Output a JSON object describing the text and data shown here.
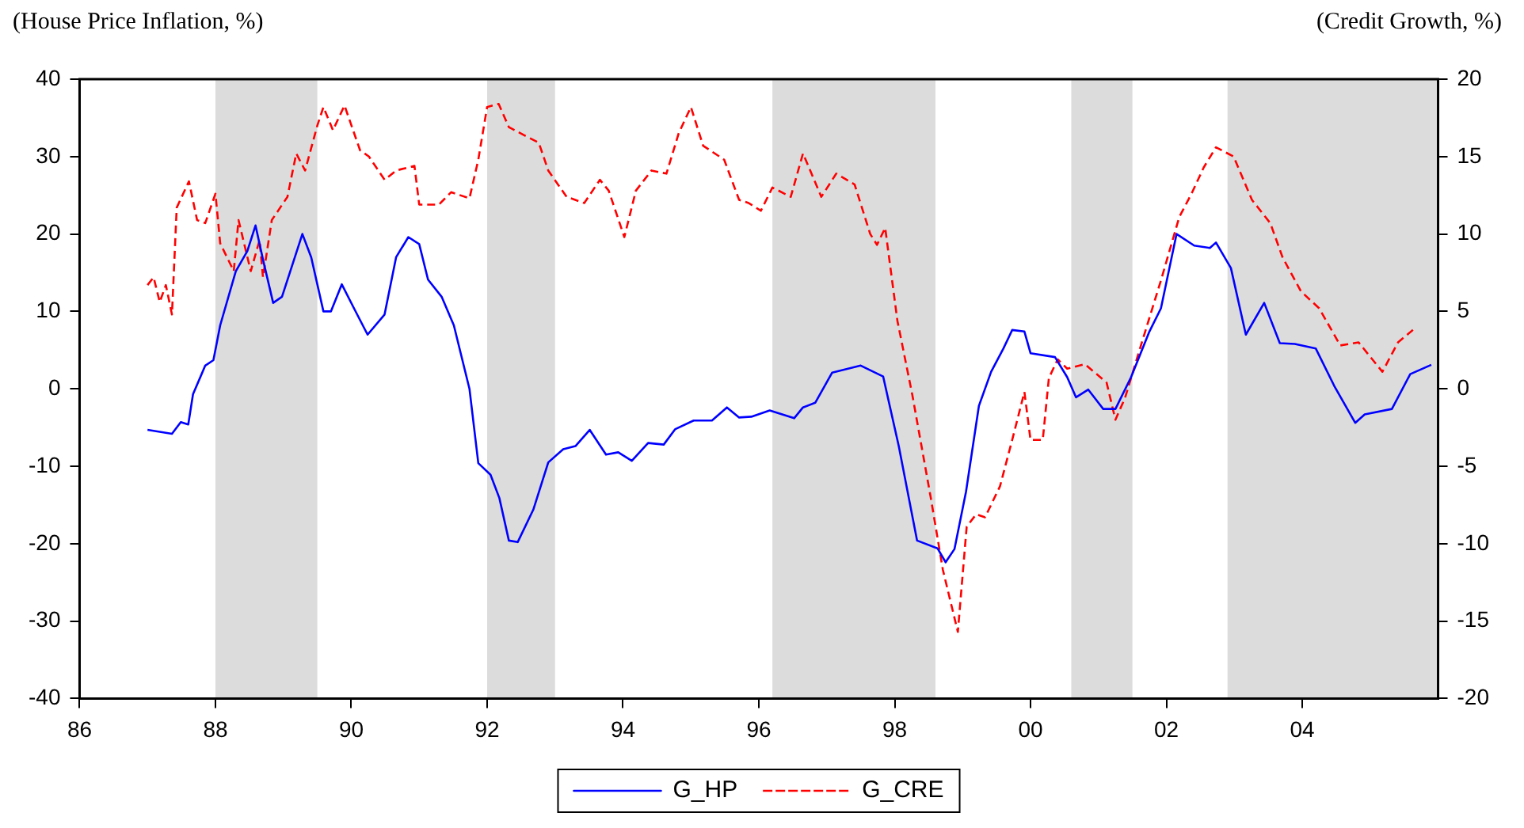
{
  "chart_data": {
    "type": "line",
    "ylabel": "(House Price Inflation, %)",
    "y2label": "(Credit Growth, %)",
    "xlim": [
      1986,
      2006
    ],
    "xticks": [
      {
        "value": 1986,
        "label": "86"
      },
      {
        "value": 1988,
        "label": "88"
      },
      {
        "value": 1990,
        "label": "90"
      },
      {
        "value": 1992,
        "label": "92"
      },
      {
        "value": 1994,
        "label": "94"
      },
      {
        "value": 1996,
        "label": "96"
      },
      {
        "value": 1998,
        "label": "98"
      },
      {
        "value": 2000,
        "label": "00"
      },
      {
        "value": 2002,
        "label": "02"
      },
      {
        "value": 2004,
        "label": "04"
      }
    ],
    "ylim": [
      -40,
      40
    ],
    "yticks": [
      -40,
      -30,
      -20,
      -10,
      0,
      10,
      20,
      30,
      40
    ],
    "y2lim": [
      -20,
      20
    ],
    "y2ticks": [
      -20,
      -15,
      -10,
      -5,
      0,
      5,
      10,
      15,
      20
    ],
    "grid": false,
    "legend": "bottom",
    "marker": "none",
    "bands": [
      {
        "axis": "x",
        "from": 1988,
        "to": 1989.5,
        "color": "#dcdcdc"
      },
      {
        "axis": "x",
        "from": 1992,
        "to": 1993,
        "color": "#dcdcdc"
      },
      {
        "axis": "x",
        "from": 1996.2,
        "to": 1998.6,
        "color": "#dcdcdc"
      },
      {
        "axis": "x",
        "from": 2000.6,
        "to": 2001.5,
        "color": "#dcdcdc"
      },
      {
        "axis": "x",
        "from": 2002.9,
        "to": 2006,
        "color": "#dcdcdc"
      }
    ],
    "series": [
      {
        "name": "G_HP",
        "color": "#0000ff",
        "line_style": "solid",
        "x": [
          1987.0,
          1987.36,
          1987.49,
          1987.6,
          1987.67,
          1987.85,
          1987.97,
          1988.07,
          1988.3,
          1988.47,
          1988.59,
          1988.7,
          1988.85,
          1988.98,
          1989.28,
          1989.41,
          1989.59,
          1989.7,
          1989.86,
          1990.04,
          1990.24,
          1990.49,
          1990.66,
          1990.84,
          1991.0,
          1991.13,
          1991.33,
          1991.51,
          1991.74,
          1991.87,
          1992.05,
          1992.18,
          1992.32,
          1992.45,
          1992.68,
          1992.9,
          1993.12,
          1993.3,
          1993.51,
          1993.75,
          1993.93,
          1994.13,
          1994.37,
          1994.6,
          1994.77,
          1995.04,
          1995.31,
          1995.53,
          1995.71,
          1995.89,
          1996.16,
          1996.52,
          1996.65,
          1996.83,
          1997.08,
          1997.5,
          1997.83,
          1998.06,
          1998.33,
          1998.63,
          1998.75,
          1998.88,
          1999.05,
          1999.24,
          1999.42,
          1999.6,
          1999.73,
          1999.91,
          2000.0,
          2000.36,
          2000.54,
          2000.67,
          2000.85,
          2001.07,
          2001.25,
          2001.48,
          2001.75,
          2001.92,
          2002.15,
          2002.41,
          2002.64,
          2002.73,
          2002.95,
          2003.17,
          2003.44,
          2003.67,
          2003.89,
          2004.2,
          2004.47,
          2004.78,
          2004.92,
          2005.32,
          2005.59,
          2005.9
        ],
        "values": [
          -5.3,
          -5.8,
          -4.3,
          -4.6,
          -0.7,
          3.0,
          3.7,
          8.2,
          15.2,
          17.8,
          21.1,
          16.7,
          11.1,
          11.9,
          20.0,
          17.0,
          10.0,
          10.0,
          13.5,
          10.4,
          7.0,
          9.6,
          17.0,
          19.6,
          18.7,
          14.1,
          11.9,
          8.2,
          0,
          -9.6,
          -11.1,
          -14.1,
          -19.6,
          -19.8,
          -15.6,
          -9.5,
          -7.8,
          -7.4,
          -5.3,
          -8.5,
          -8.2,
          -9.3,
          -7.0,
          -7.2,
          -5.2,
          -4.1,
          -4.1,
          -2.4,
          -3.7,
          -3.6,
          -2.8,
          -3.8,
          -2.4,
          -1.8,
          2.1,
          3.0,
          1.6,
          -7.4,
          -19.6,
          -20.6,
          -22.4,
          -20.7,
          -13.3,
          -2.2,
          2.2,
          5.2,
          7.6,
          7.4,
          4.6,
          4.1,
          1.5,
          -1.1,
          -0.1,
          -2.6,
          -2.6,
          1.5,
          7.4,
          10.4,
          20.0,
          18.5,
          18.2,
          18.9,
          15.6,
          7.0,
          11.1,
          5.9,
          5.8,
          5.2,
          0.4,
          -4.4,
          -3.3,
          -2.6,
          1.9,
          3.1
        ]
      },
      {
        "name": "G_CRE",
        "color": "#ff0000",
        "line_style": "dashed",
        "axis": "y2",
        "x": [
          1987.0,
          1987.09,
          1987.18,
          1987.27,
          1987.36,
          1987.43,
          1987.61,
          1987.73,
          1987.85,
          1988.0,
          1988.07,
          1988.27,
          1988.34,
          1988.52,
          1988.65,
          1988.7,
          1988.83,
          1989.06,
          1989.19,
          1989.32,
          1989.5,
          1989.59,
          1989.73,
          1989.9,
          1990.13,
          1990.26,
          1990.49,
          1990.66,
          1990.93,
          1991.0,
          1991.29,
          1991.47,
          1991.74,
          1991.87,
          1992.0,
          1992.17,
          1992.32,
          1992.58,
          1992.76,
          1992.9,
          1993.17,
          1993.43,
          1993.66,
          1993.79,
          1994.02,
          1994.19,
          1994.42,
          1994.64,
          1994.82,
          1995.0,
          1995.18,
          1995.49,
          1995.71,
          1995.85,
          1996.03,
          1996.2,
          1996.47,
          1996.65,
          1996.92,
          1997.14,
          1997.41,
          1997.64,
          1997.74,
          1997.86,
          1998.04,
          1998.26,
          1998.53,
          1998.71,
          1998.93,
          1999.06,
          1999.2,
          1999.33,
          1999.55,
          1999.73,
          1999.91,
          2000.0,
          2000.18,
          2000.27,
          2000.4,
          2000.54,
          2000.8,
          2001.12,
          2001.25,
          2001.39,
          2001.66,
          2001.92,
          2002.19,
          2002.37,
          2002.55,
          2002.73,
          2002.99,
          2003.26,
          2003.53,
          2003.71,
          2003.98,
          2004.25,
          2004.56,
          2004.83,
          2005.18,
          2005.41,
          2005.63
        ],
        "values": [
          6.7,
          7.2,
          5.6,
          6.7,
          4.8,
          11.7,
          13.4,
          10.9,
          10.7,
          12.6,
          9.4,
          7.6,
          10.9,
          7.6,
          9.6,
          7.2,
          10.9,
          12.4,
          15.2,
          14.1,
          17.0,
          18.2,
          16.7,
          18.3,
          15.4,
          15.0,
          13.5,
          14.1,
          14.4,
          11.9,
          11.9,
          12.7,
          12.3,
          14.8,
          18.2,
          18.4,
          16.9,
          16.3,
          15.9,
          14.1,
          12.4,
          12.0,
          13.5,
          12.8,
          9.8,
          12.8,
          14.1,
          13.9,
          16.5,
          18.2,
          15.7,
          14.8,
          12.2,
          12.0,
          11.5,
          13.0,
          12.4,
          15.2,
          12.4,
          13.9,
          13.2,
          10.0,
          9.3,
          10.4,
          4.4,
          -0.4,
          -7.0,
          -11.7,
          -15.7,
          -8.9,
          -8.1,
          -8.3,
          -6.3,
          -3.3,
          -0.2,
          -3.3,
          -3.3,
          0.7,
          1.9,
          1.3,
          1.6,
          0.4,
          -2.0,
          -0.6,
          3.3,
          7.0,
          11.1,
          12.6,
          14.3,
          15.6,
          15.0,
          12.2,
          10.7,
          8.5,
          6.3,
          5.2,
          2.8,
          3.0,
          1.1,
          3.0,
          3.8
        ]
      }
    ]
  }
}
